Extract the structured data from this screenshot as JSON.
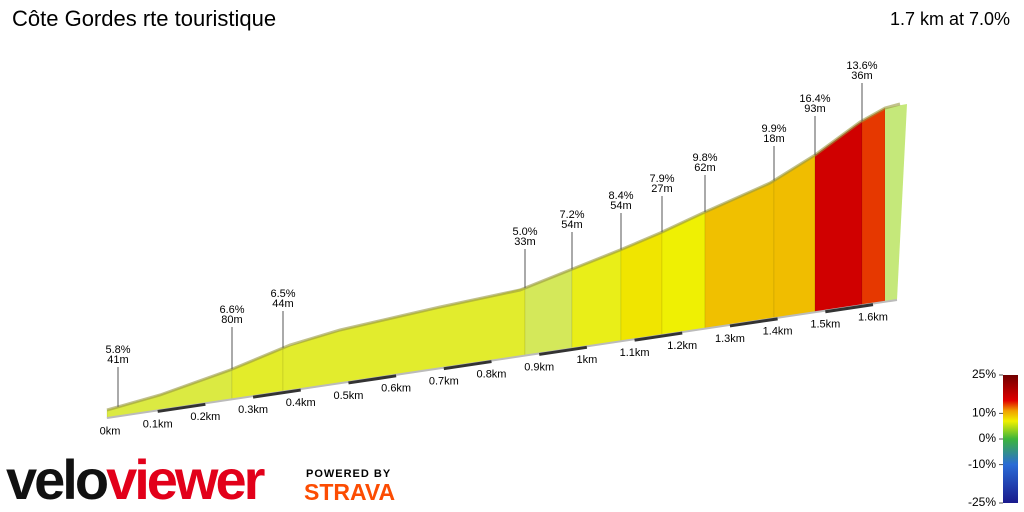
{
  "chart_data": {
    "type": "elevation-profile",
    "title": "Côte Gordes rte touristique",
    "subtitle": "1.7 km at 7.0%",
    "distance_labels": [
      "0km",
      "0.1km",
      "0.2km",
      "0.3km",
      "0.4km",
      "0.5km",
      "0.6km",
      "0.7km",
      "0.8km",
      "0.9km",
      "1km",
      "1.1km",
      "1.2km",
      "1.3km",
      "1.4km",
      "1.5km",
      "1.6km"
    ],
    "annotations": [
      {
        "gradient": {
          "value": 5.8,
          "label": "5.8%"
        },
        "length": {
          "value": 41,
          "label": "41m"
        }
      },
      {
        "gradient": {
          "value": 6.6,
          "label": "6.6%"
        },
        "length": {
          "value": 80,
          "label": "80m"
        }
      },
      {
        "gradient": {
          "value": 6.5,
          "label": "6.5%"
        },
        "length": {
          "value": 44,
          "label": "44m"
        }
      },
      {
        "gradient": {
          "value": 5.0,
          "label": "5.0%"
        },
        "length": {
          "value": 33,
          "label": "33m"
        }
      },
      {
        "gradient": {
          "value": 7.2,
          "label": "7.2%"
        },
        "length": {
          "value": 54,
          "label": "54m"
        }
      },
      {
        "gradient": {
          "value": 8.4,
          "label": "8.4%"
        },
        "length": {
          "value": 54,
          "label": "54m"
        }
      },
      {
        "gradient": {
          "value": 7.9,
          "label": "7.9%"
        },
        "length": {
          "value": 27,
          "label": "27m"
        }
      },
      {
        "gradient": {
          "value": 9.8,
          "label": "9.8%"
        },
        "length": {
          "value": 62,
          "label": "62m"
        }
      },
      {
        "gradient": {
          "value": 9.9,
          "label": "9.9%"
        },
        "length": {
          "value": 18,
          "label": "18m"
        }
      },
      {
        "gradient": {
          "value": 16.4,
          "label": "16.4%"
        },
        "length": {
          "value": 93,
          "label": "93m"
        }
      },
      {
        "gradient": {
          "value": 13.6,
          "label": "13.6%"
        },
        "length": {
          "value": 36,
          "label": "36m"
        }
      }
    ],
    "legend_ticks": [
      {
        "value": 25,
        "label": "25%"
      },
      {
        "value": 10,
        "label": "10%"
      },
      {
        "value": 0,
        "label": "0%"
      },
      {
        "value": -10,
        "label": "-10%"
      },
      {
        "value": -25,
        "label": "-25%"
      }
    ]
  },
  "branding": {
    "velo": "velo",
    "viewer": "viewer",
    "powered": "POWERED BY",
    "strava": "STRAVA"
  }
}
